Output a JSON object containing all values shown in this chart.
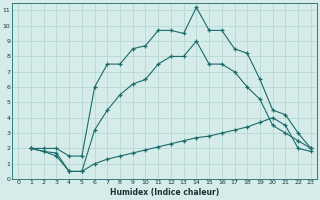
{
  "xlabel": "Humidex (Indice chaleur)",
  "background_color": "#d6ecea",
  "grid_color": "#b8d8d4",
  "line_color": "#1a6b6b",
  "xlim": [
    -0.5,
    23.5
  ],
  "ylim": [
    0,
    11.5
  ],
  "xticks": [
    0,
    1,
    2,
    3,
    4,
    5,
    6,
    7,
    8,
    9,
    10,
    11,
    12,
    13,
    14,
    15,
    16,
    17,
    18,
    19,
    20,
    21,
    22,
    23
  ],
  "yticks": [
    0,
    1,
    2,
    3,
    4,
    5,
    6,
    7,
    8,
    9,
    10,
    11
  ],
  "line1_x": [
    1,
    2,
    3,
    4,
    5,
    6,
    7,
    8,
    9,
    10,
    11,
    12,
    13,
    14,
    15,
    16,
    17,
    18,
    19,
    20,
    21,
    22,
    23
  ],
  "line1_y": [
    2,
    2,
    2,
    1.5,
    1.5,
    6.0,
    7.5,
    7.5,
    8.5,
    8.7,
    9.7,
    9.7,
    9.5,
    11.2,
    9.7,
    9.7,
    8.5,
    8.2,
    6.5,
    4.5,
    4.2,
    3.0,
    2.0
  ],
  "line2_x": [
    1,
    2,
    3,
    4,
    5,
    6,
    7,
    8,
    9,
    10,
    11,
    12,
    13,
    14,
    15,
    16,
    17,
    18,
    19,
    20,
    21,
    22,
    23
  ],
  "line2_y": [
    2,
    1.8,
    1.7,
    0.5,
    0.5,
    3.2,
    4.5,
    5.5,
    6.2,
    6.5,
    7.5,
    8.0,
    8.0,
    9.0,
    7.5,
    7.5,
    7.0,
    6.0,
    5.2,
    3.5,
    3.0,
    2.5,
    2.0
  ],
  "line3_x": [
    1,
    2,
    3,
    4,
    5,
    6,
    7,
    8,
    9,
    10,
    11,
    12,
    13,
    14,
    15,
    16,
    17,
    18,
    19,
    20,
    21,
    22,
    23
  ],
  "line3_y": [
    2,
    1.8,
    1.5,
    0.5,
    0.5,
    1.0,
    1.3,
    1.5,
    1.7,
    1.9,
    2.1,
    2.3,
    2.5,
    2.7,
    2.8,
    3.0,
    3.2,
    3.4,
    3.7,
    4.0,
    3.5,
    2.0,
    1.8
  ]
}
